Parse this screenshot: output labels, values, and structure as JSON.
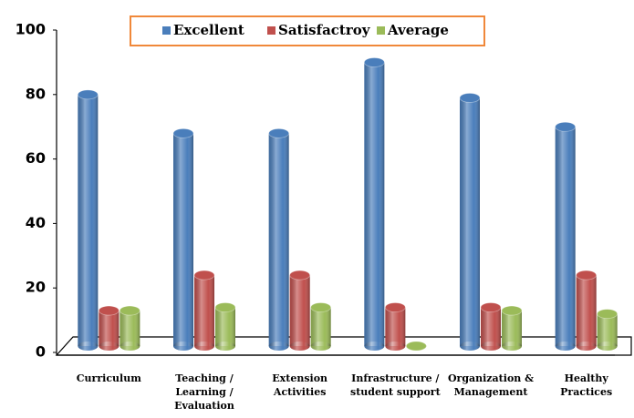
{
  "chart_data": {
    "type": "bar",
    "categories": [
      "Curriculum",
      "Teaching /\nLearning /\nEvaluation",
      "Extension\nActivities",
      "Infrastructure /\nstudent support",
      "Organization  &\nManagement",
      "Healthy\nPractices"
    ],
    "series": [
      {
        "name": "Excellent",
        "color": "#4a7ebb",
        "values": [
          78,
          66,
          66,
          88,
          77,
          68
        ]
      },
      {
        "name": "Satisfactroy",
        "color": "#c0504d",
        "values": [
          11,
          22,
          22,
          12,
          12,
          22
        ]
      },
      {
        "name": "Average",
        "color": "#9bbb59",
        "values": [
          11,
          12,
          12,
          0,
          11,
          10
        ]
      }
    ],
    "ylim": [
      0,
      100
    ],
    "yticks": [
      0,
      20,
      40,
      60,
      80,
      100
    ],
    "legend": "top"
  }
}
